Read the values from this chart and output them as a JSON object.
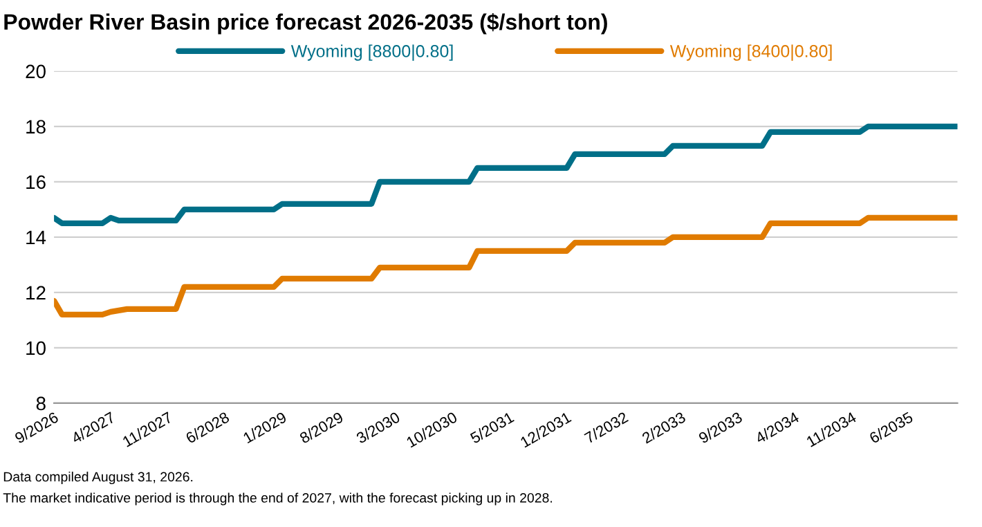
{
  "chart_data": {
    "type": "line",
    "title": "Powder River Basin price forecast 2026-2035 ($/short ton)",
    "series": [
      {
        "name": "Wyoming [8800|0.80]",
        "color": "#006f88",
        "x": [
          "2026-09",
          "2026-10",
          "2027-03",
          "2027-04",
          "2027-05",
          "2027-12",
          "2028-01",
          "2028-12",
          "2029-01",
          "2029-12",
          "2030-01",
          "2030-12",
          "2031-01",
          "2031-12",
          "2032-01",
          "2032-12",
          "2033-01",
          "2033-12",
          "2034-01",
          "2034-12",
          "2035-01",
          "2035-12"
        ],
        "values": [
          14.7,
          14.5,
          14.5,
          14.7,
          14.6,
          14.6,
          15.0,
          15.0,
          15.2,
          15.2,
          16.0,
          16.0,
          16.5,
          16.5,
          17.0,
          17.0,
          17.3,
          17.3,
          17.8,
          17.8,
          18.0,
          18.0
        ]
      },
      {
        "name": "Wyoming [8400|0.80]",
        "color": "#e07b00",
        "x": [
          "2026-09",
          "2026-10",
          "2027-03",
          "2027-04",
          "2027-06",
          "2027-12",
          "2028-01",
          "2028-12",
          "2029-01",
          "2029-12",
          "2030-01",
          "2030-12",
          "2031-01",
          "2031-12",
          "2032-01",
          "2032-12",
          "2033-01",
          "2033-12",
          "2034-01",
          "2034-12",
          "2035-01",
          "2035-12"
        ],
        "values": [
          11.7,
          11.2,
          11.2,
          11.3,
          11.4,
          11.4,
          12.2,
          12.2,
          12.5,
          12.5,
          12.9,
          12.9,
          13.5,
          13.5,
          13.8,
          13.8,
          14.0,
          14.0,
          14.5,
          14.5,
          14.7,
          14.7
        ]
      }
    ],
    "xlim": [
      "2026-09",
      "2035-12"
    ],
    "xticks": [
      {
        "value": "2026-09",
        "label": "9/2026"
      },
      {
        "value": "2027-04",
        "label": "4/2027"
      },
      {
        "value": "2027-11",
        "label": "11/2027"
      },
      {
        "value": "2028-06",
        "label": "6/2028"
      },
      {
        "value": "2029-01",
        "label": "1/2029"
      },
      {
        "value": "2029-08",
        "label": "8/2029"
      },
      {
        "value": "2030-03",
        "label": "3/2030"
      },
      {
        "value": "2030-10",
        "label": "10/2030"
      },
      {
        "value": "2031-05",
        "label": "5/2031"
      },
      {
        "value": "2031-12",
        "label": "12/2031"
      },
      {
        "value": "2032-07",
        "label": "7/2032"
      },
      {
        "value": "2033-02",
        "label": "2/2033"
      },
      {
        "value": "2033-09",
        "label": "9/2033"
      },
      {
        "value": "2034-04",
        "label": "4/2034"
      },
      {
        "value": "2034-11",
        "label": "11/2034"
      },
      {
        "value": "2035-06",
        "label": "6/2035"
      }
    ],
    "ylim": [
      8,
      20
    ],
    "yticks": [
      8,
      10,
      12,
      14,
      16,
      18,
      20
    ],
    "grid": "y",
    "legend": "top",
    "marker": "none",
    "line_style": "solid",
    "annotations": [
      "Data compiled August 31, 2026.",
      "The market indicative period is through the end of 2027, with the forecast picking up in 2028."
    ]
  }
}
